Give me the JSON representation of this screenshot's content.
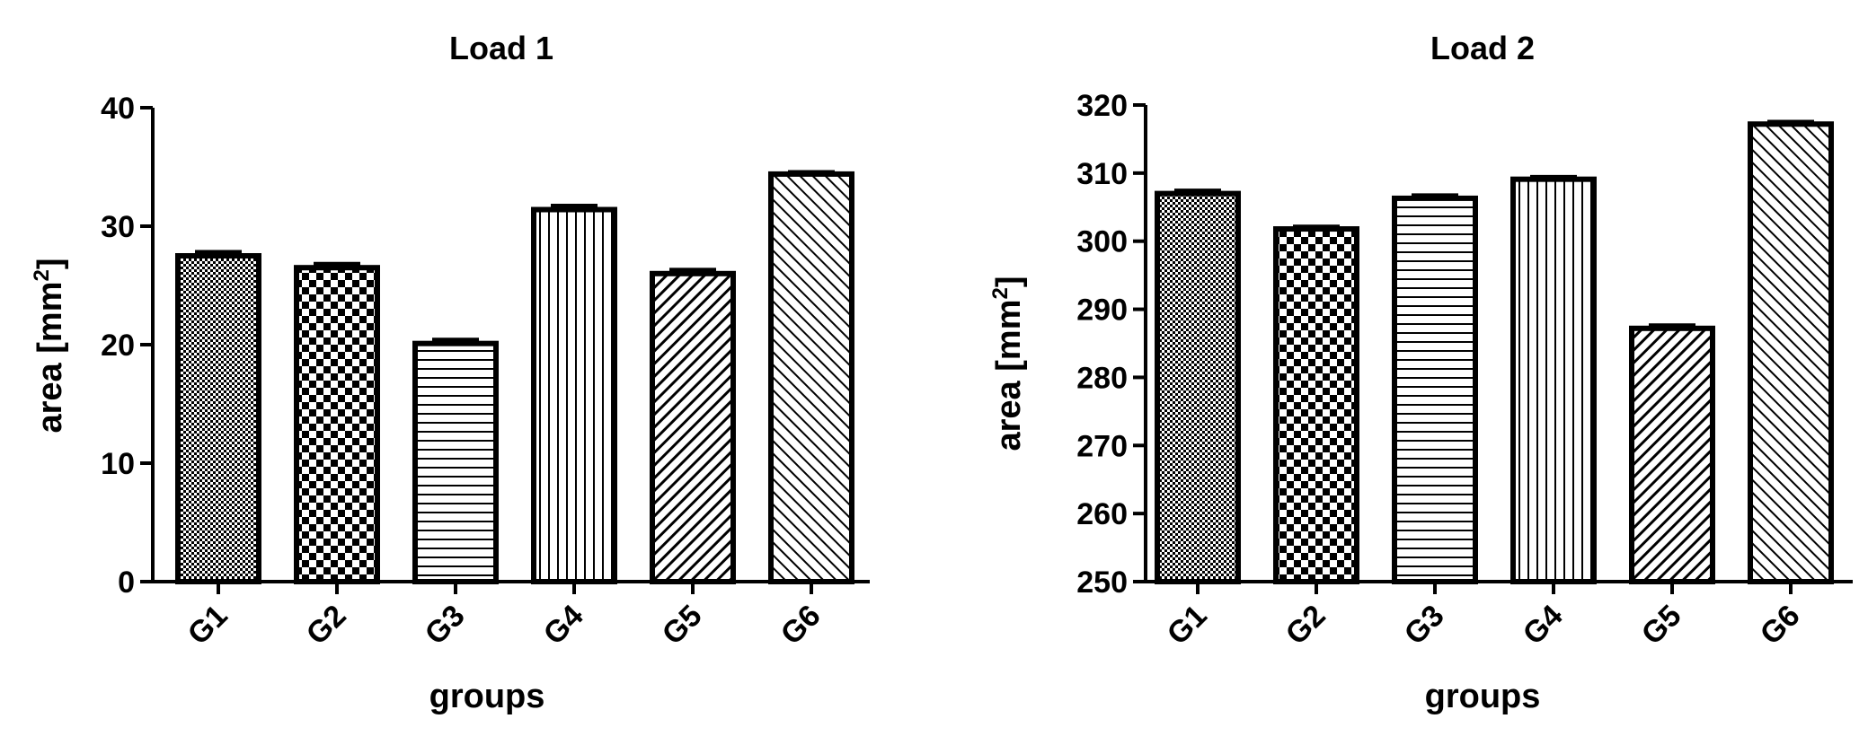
{
  "chart_data": [
    {
      "type": "bar",
      "title": "Load 1",
      "xlabel": "groups",
      "ylabel": "area [mm",
      "ylabel_sup": "2",
      "ylabel_close": "]",
      "categories": [
        "G1",
        "G2",
        "G3",
        "G4",
        "G5",
        "G6"
      ],
      "values": [
        27.5,
        26.5,
        20.1,
        31.4,
        26.0,
        34.4
      ],
      "errors": [
        0.3,
        0.3,
        0.3,
        0.3,
        0.3,
        0.15
      ],
      "ylim": [
        0,
        40
      ],
      "yticks": [
        0,
        10,
        20,
        30,
        40
      ],
      "patterns": [
        "fine-check",
        "checker",
        "horizontal",
        "vertical",
        "diag-up",
        "diag-down"
      ]
    },
    {
      "type": "bar",
      "title": "Load 2",
      "xlabel": "groups",
      "ylabel": "area [mm",
      "ylabel_sup": "2",
      "ylabel_close": "]",
      "categories": [
        "G1",
        "G2",
        "G3",
        "G4",
        "G5",
        "G6"
      ],
      "values": [
        307.0,
        301.8,
        306.3,
        309.1,
        287.2,
        317.2
      ],
      "errors": [
        0.4,
        0.3,
        0.4,
        0.3,
        0.4,
        0.3
      ],
      "ylim": [
        250,
        320
      ],
      "yticks": [
        250,
        260,
        270,
        280,
        290,
        300,
        310,
        320
      ],
      "patterns": [
        "fine-check",
        "checker",
        "horizontal",
        "vertical",
        "diag-up",
        "diag-down"
      ]
    }
  ],
  "colors": {
    "ink": "#000000",
    "fill": "#ffffff"
  }
}
